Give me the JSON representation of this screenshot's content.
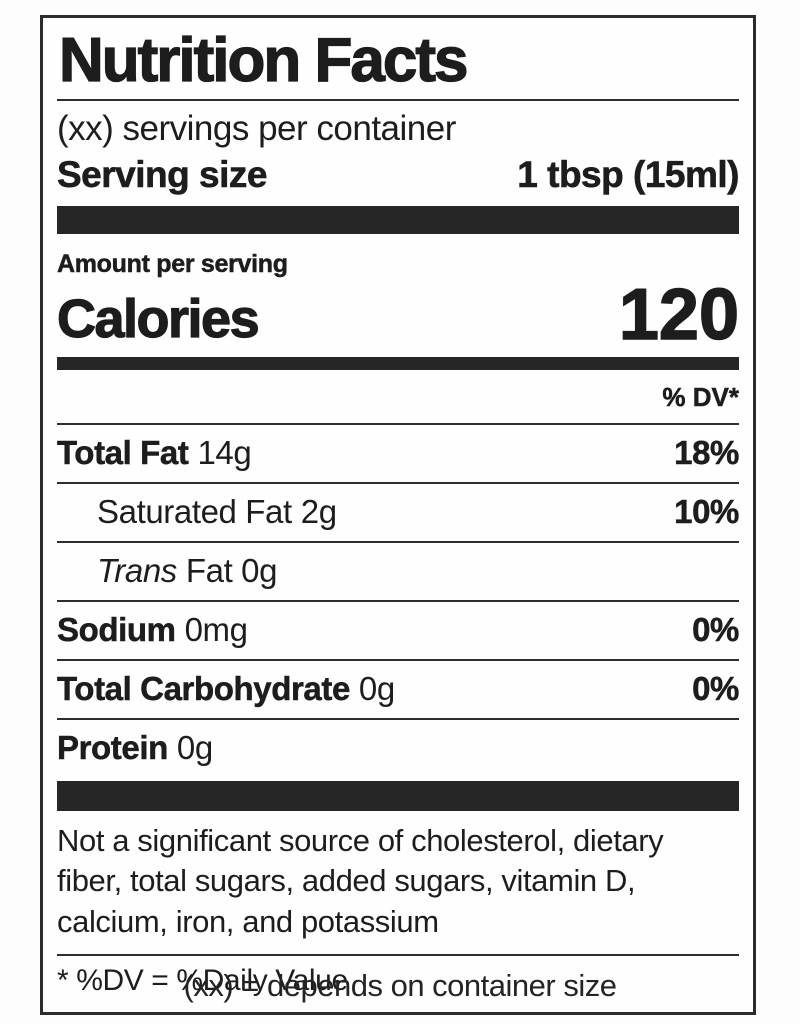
{
  "label": {
    "title": "Nutrition Facts",
    "servings_per_container": "(xx) servings per container",
    "serving_size_label": "Serving size",
    "serving_size_value": "1 tbsp (15ml)",
    "amount_per_serving": "Amount per serving",
    "calories_label": "Calories",
    "calories_value": "120",
    "dv_header": "% DV*",
    "rows": [
      {
        "name": "Total Fat",
        "amount": "14g",
        "dv": "18%"
      },
      {
        "name": "Saturated Fat",
        "amount": "2g",
        "dv": "10%"
      },
      {
        "name": "Trans",
        "amount": "Fat 0g",
        "dv": ""
      },
      {
        "name": "Sodium",
        "amount": "0mg",
        "dv": "0%"
      },
      {
        "name": "Total Carbohydrate",
        "amount": "0g",
        "dv": "0%"
      },
      {
        "name": "Protein",
        "amount": "0g",
        "dv": ""
      }
    ],
    "footnote_sources": "Not a significant source of cholesterol, dietary fiber, total sugars, added sugars, vitamin D, calcium, iron, and potassium",
    "dv_note": "* %DV = %Daily Value"
  },
  "caption": "(xx) = depends on container size",
  "colors": {
    "bar": "#262626",
    "text": "#1d1d1d",
    "border": "#2b2b2b"
  }
}
